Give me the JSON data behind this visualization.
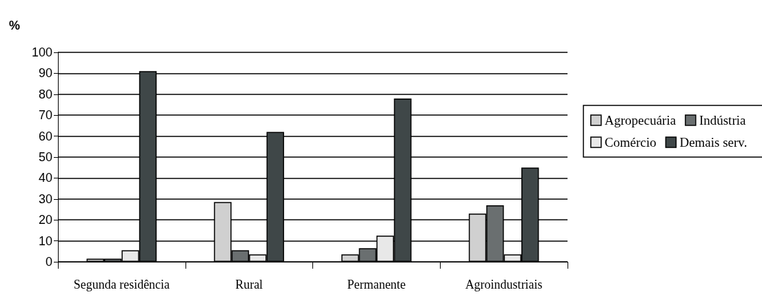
{
  "chart_data": {
    "type": "bar",
    "ylabel": "%",
    "categories": [
      "Segunda residência",
      "Rural",
      "Permanente",
      "Agroindustriais"
    ],
    "series": [
      {
        "name": "Agropecuária",
        "color": "#d0d0d0",
        "values": [
          1.5,
          28.5,
          3.5,
          23
        ]
      },
      {
        "name": "Indústria",
        "color": "#6a6f70",
        "values": [
          1.5,
          5.5,
          6.5,
          27
        ]
      },
      {
        "name": "Comércio",
        "color": "#e8e8e8",
        "values": [
          5.5,
          3.5,
          12.5,
          3.5
        ]
      },
      {
        "name": "Demais serv.",
        "color": "#3f4748",
        "values": [
          91,
          62,
          78,
          45
        ]
      }
    ],
    "ylim": [
      0,
      100
    ],
    "yticks": [
      0,
      10,
      20,
      30,
      40,
      50,
      60,
      70,
      80,
      90,
      100
    ],
    "grid": "y",
    "legend": "right"
  }
}
